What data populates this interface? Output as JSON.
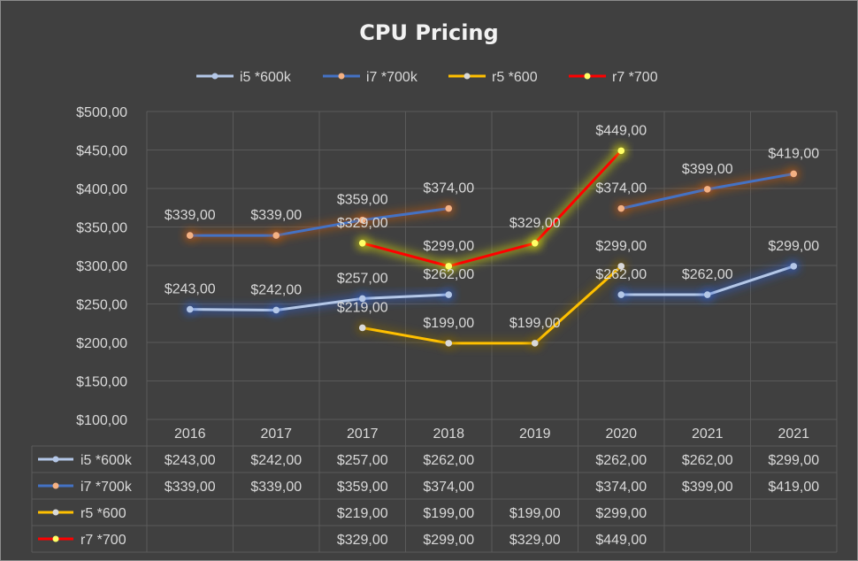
{
  "chart_data": {
    "type": "line",
    "title": "CPU Pricing",
    "categories": [
      "2016",
      "2017",
      "2017",
      "2018",
      "2019",
      "2020",
      "2021",
      "2021"
    ],
    "ylim": [
      100,
      500
    ],
    "y_ticks": [
      "$100,00",
      "$150,00",
      "$200,00",
      "$250,00",
      "$300,00",
      "$350,00",
      "$400,00",
      "$450,00",
      "$500,00"
    ],
    "grid": true,
    "legend_position": "top",
    "data_table": true,
    "series": [
      {
        "name": "i5 *600k",
        "color": "#b4c7e7",
        "marker": "#b4c7e7",
        "glow": "#2f5fd0",
        "values": [
          243,
          242,
          257,
          262,
          null,
          262,
          262,
          299
        ],
        "labels": [
          "$243,00",
          "$242,00",
          "$257,00",
          "$262,00",
          "",
          "$262,00",
          "$262,00",
          "$299,00"
        ]
      },
      {
        "name": "i7 *700k",
        "color": "#4472c4",
        "marker": "#f4b183",
        "glow": "#c55a11",
        "values": [
          339,
          339,
          359,
          374,
          null,
          374,
          399,
          419
        ],
        "labels": [
          "$339,00",
          "$339,00",
          "$359,00",
          "$374,00",
          "",
          "$374,00",
          "$399,00",
          "$419,00"
        ]
      },
      {
        "name": "r5 *600",
        "color": "#ffc000",
        "marker": "#d9d9d9",
        "glow": "#7f6000",
        "values": [
          null,
          null,
          219,
          199,
          199,
          299,
          null,
          null
        ],
        "labels": [
          "",
          "",
          "$219,00",
          "$199,00",
          "$199,00",
          "$299,00",
          "",
          ""
        ]
      },
      {
        "name": "r7 *700",
        "color": "#ff0000",
        "marker": "#ffff66",
        "glow": "#e6e600",
        "values": [
          null,
          null,
          329,
          299,
          329,
          449,
          null,
          null
        ],
        "labels": [
          "",
          "",
          "$329,00",
          "$299,00",
          "$329,00",
          "$449,00",
          "",
          ""
        ]
      }
    ]
  }
}
